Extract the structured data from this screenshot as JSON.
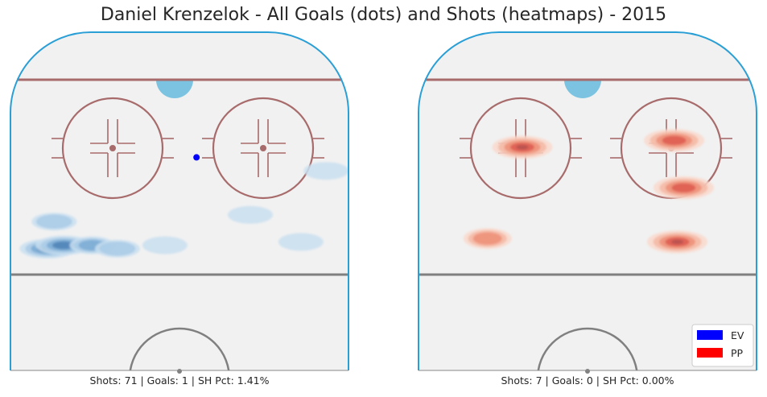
{
  "title": "Daniel Krenzelok - All Goals (dots) and Shots (heatmaps) - 2015",
  "colors": {
    "ice": "#f1f1f1",
    "boards": "#2a9fd6",
    "red_line": "#a86b6b",
    "center_line": "#808080",
    "crease": "#7cc3e1",
    "ev": "#0000ff",
    "pp": "#ff0000",
    "ev_heat": [
      "#c9dff0",
      "#a9cbe6",
      "#7aaad4",
      "#4f83b6",
      "#35577f"
    ],
    "pp_heat": [
      "#f9d9cc",
      "#f5b9a4",
      "#ee8f78",
      "#dd5c50",
      "#b5504f"
    ]
  },
  "legend": [
    {
      "label": "EV",
      "color": "#0000ff"
    },
    {
      "label": "PP",
      "color": "#ff0000"
    }
  ],
  "chart_data": [
    {
      "type": "heatmap",
      "panel": "left",
      "strength": "EV",
      "caption": "Shots: 71 | Goals: 1 | SH Pct: 1.41%",
      "shots": 71,
      "goals": 1,
      "sh_pct": "1.41%",
      "goal_dots": [
        {
          "strength": "EV",
          "x": 0.55,
          "y": 0.37
        }
      ],
      "density": [
        {
          "x": 0.08,
          "y": 0.64,
          "level": 5
        },
        {
          "x": 0.13,
          "y": 0.63,
          "level": 4
        },
        {
          "x": 0.22,
          "y": 0.63,
          "level": 3
        },
        {
          "x": 0.1,
          "y": 0.56,
          "level": 2
        },
        {
          "x": 0.3,
          "y": 0.64,
          "level": 2
        },
        {
          "x": 0.45,
          "y": 0.63,
          "level": 1
        },
        {
          "x": 0.72,
          "y": 0.54,
          "level": 1
        },
        {
          "x": 0.88,
          "y": 0.62,
          "level": 1
        },
        {
          "x": 0.96,
          "y": 0.41,
          "level": 1
        }
      ]
    },
    {
      "type": "heatmap",
      "panel": "right",
      "strength": "PP",
      "caption": "Shots: 7 | Goals: 0 | SH Pct: 0.00%",
      "shots": 7,
      "goals": 0,
      "sh_pct": "0.00%",
      "goal_dots": [],
      "density": [
        {
          "x": 0.29,
          "y": 0.34,
          "level": 5
        },
        {
          "x": 0.77,
          "y": 0.32,
          "level": 4
        },
        {
          "x": 0.8,
          "y": 0.46,
          "level": 4
        },
        {
          "x": 0.18,
          "y": 0.61,
          "level": 3
        },
        {
          "x": 0.78,
          "y": 0.62,
          "level": 5
        }
      ]
    }
  ]
}
